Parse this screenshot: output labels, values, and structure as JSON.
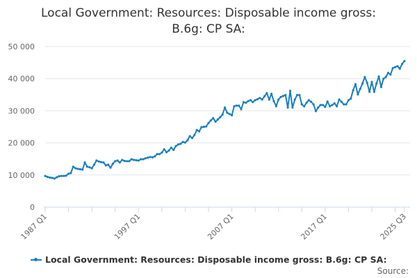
{
  "colors": {
    "series": "#1a7fc1",
    "grid": "#e6e6e6",
    "axis": "#ccd6eb"
  },
  "chart_data": {
    "type": "line",
    "title": "Local Government: Resources: Disposable income gross: B.6g: CP SA:",
    "title_lines": [
      "Local Government: Resources: Disposable income gross:",
      "B.6g: CP SA:"
    ],
    "x_start": "1987 Q1",
    "x_end": "2025 Q3",
    "frequency": "quarterly",
    "x_tick_labels": [
      "1987 Q1",
      "1997 Q1",
      "2007 Q1",
      "2017 Q1",
      "2025 Q3"
    ],
    "y_tick_labels": [
      "0",
      "10 000",
      "20 000",
      "30 000",
      "40 000",
      "50 000"
    ],
    "ylim": [
      0,
      50000
    ],
    "grid": true,
    "legend_position": "bottom",
    "series": [
      {
        "name": "Local Government: Resources: Disposable income gross: B.6g: CP SA:",
        "values": [
          9700,
          9400,
          9200,
          9100,
          8900,
          9300,
          9600,
          9700,
          9700,
          9800,
          10400,
          10600,
          12600,
          12100,
          11900,
          11800,
          11700,
          13900,
          12600,
          12400,
          12100,
          13200,
          14500,
          14200,
          14000,
          13900,
          13000,
          13200,
          12300,
          13500,
          14300,
          14500,
          13900,
          14700,
          14400,
          14300,
          14300,
          14900,
          14700,
          14600,
          14500,
          14900,
          14900,
          15200,
          15400,
          15600,
          15500,
          15800,
          16500,
          16500,
          17000,
          18000,
          17100,
          17600,
          18500,
          17800,
          19000,
          19500,
          19700,
          20300,
          20100,
          20800,
          22100,
          21500,
          22500,
          24000,
          23600,
          24900,
          25000,
          25100,
          26200,
          27000,
          27700,
          26600,
          27300,
          28000,
          28800,
          31000,
          29400,
          29000,
          28600,
          31400,
          31600,
          31600,
          30500,
          32700,
          32500,
          33000,
          33300,
          32700,
          33300,
          33600,
          34000,
          33500,
          34500,
          35500,
          33500,
          35300,
          33000,
          31400,
          33500,
          34300,
          34600,
          34900,
          31000,
          36200,
          31000,
          33500,
          34900,
          34900,
          32000,
          31400,
          32500,
          33300,
          32800,
          32000,
          29900,
          31000,
          31800,
          31800,
          31200,
          32900,
          31400,
          31800,
          32300,
          31400,
          33500,
          32800,
          32000,
          32000,
          33300,
          33800,
          36400,
          38300,
          35100,
          36800,
          38500,
          40500,
          38700,
          35900,
          39000,
          35900,
          38500,
          40700,
          37400,
          40000,
          40500,
          41800,
          41300,
          43300,
          43600,
          43900,
          43100,
          44600,
          45500
        ]
      }
    ]
  },
  "footer": {
    "source_label": "Source:"
  }
}
